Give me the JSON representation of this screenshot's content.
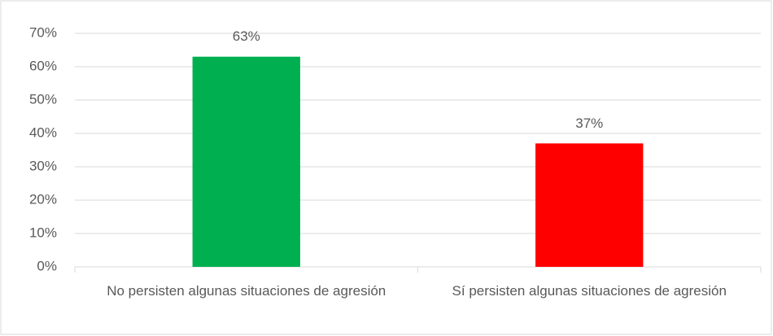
{
  "chart_data": {
    "type": "bar",
    "categories": [
      "No persisten algunas situaciones de agresión",
      "Sí persisten algunas situaciones de agresión"
    ],
    "values": [
      63,
      37
    ],
    "value_labels": [
      "63%",
      "37%"
    ],
    "colors": [
      "#00b050",
      "#ff0000"
    ],
    "ylim": [
      0,
      70
    ],
    "yticks": [
      {
        "value": 0,
        "label": "0%"
      },
      {
        "value": 10,
        "label": "10%"
      },
      {
        "value": 20,
        "label": "20%"
      },
      {
        "value": 30,
        "label": "30%"
      },
      {
        "value": 40,
        "label": "40%"
      },
      {
        "value": 50,
        "label": "50%"
      },
      {
        "value": 60,
        "label": "60%"
      },
      {
        "value": 70,
        "label": "70%"
      }
    ],
    "grid": true
  }
}
